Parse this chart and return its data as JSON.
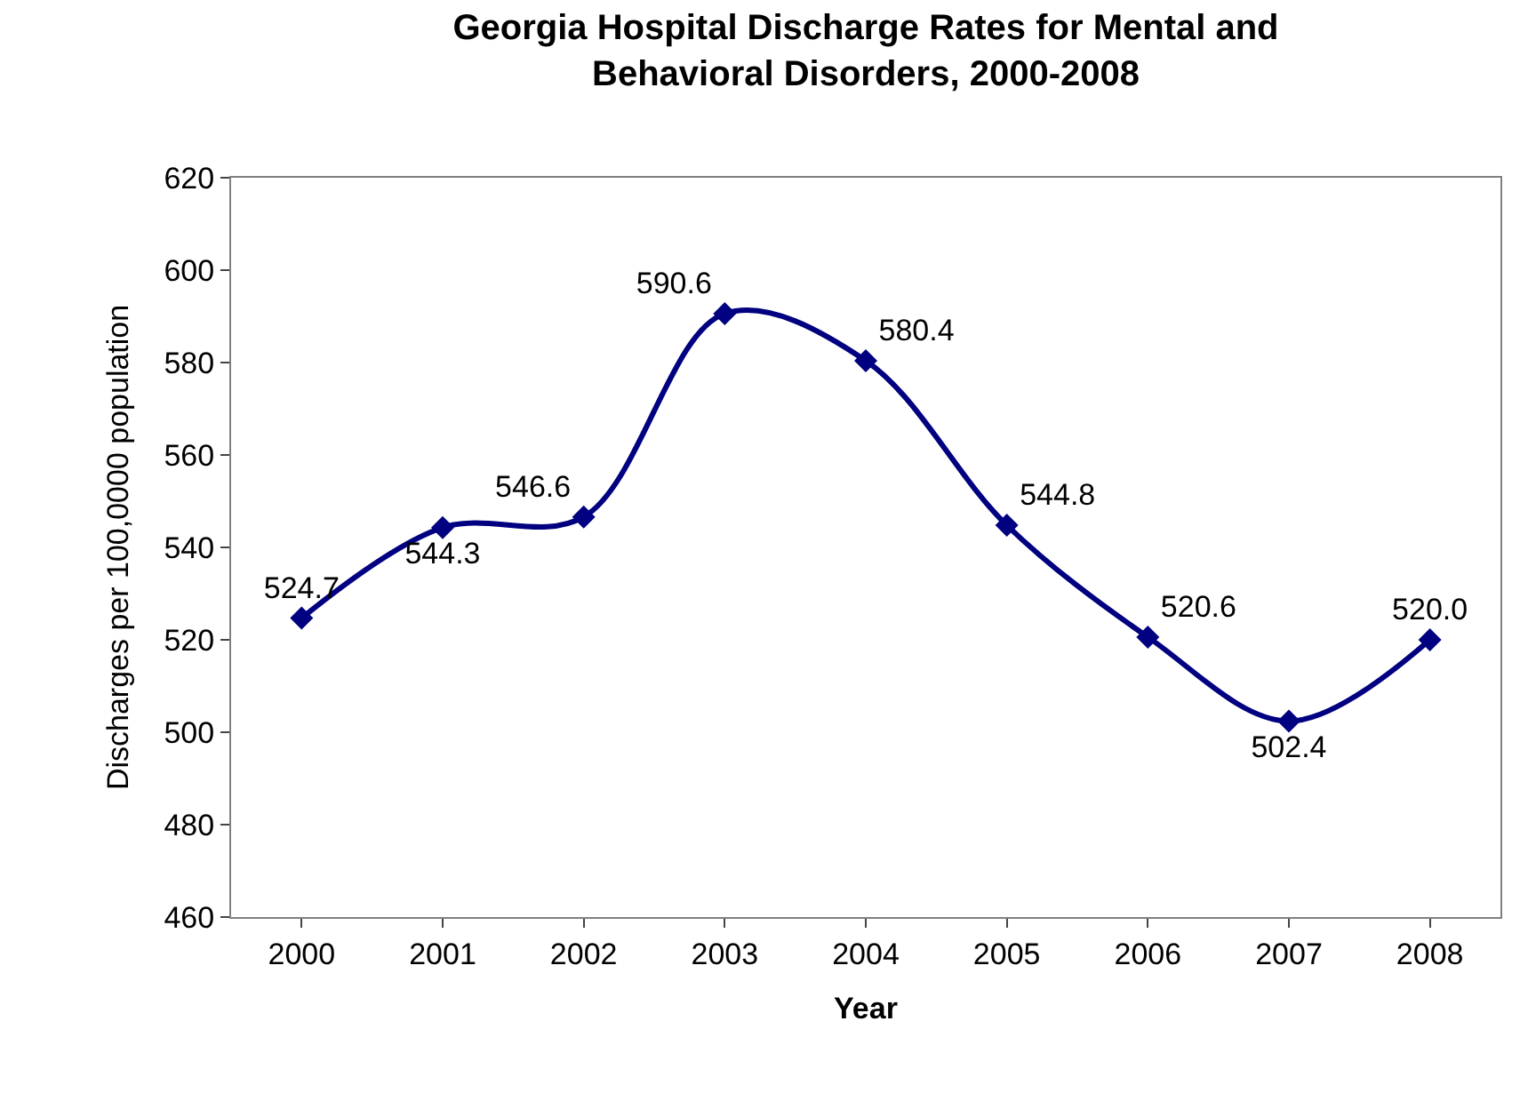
{
  "chart_data": {
    "type": "line",
    "title": "Georgia Hospital Discharge Rates for Mental and\nBehavioral Disorders, 2000-2008",
    "xlabel": "Year",
    "ylabel": "Discharges per 100,0000 population",
    "categories": [
      "2000",
      "2001",
      "2002",
      "2003",
      "2004",
      "2005",
      "2006",
      "2007",
      "2008"
    ],
    "series": [
      {
        "color": "#000080",
        "values": [
          524.7,
          544.3,
          546.6,
          590.6,
          580.4,
          544.8,
          520.6,
          502.4,
          520.0
        ],
        "value_labels": [
          "524.7",
          "544.3",
          "546.6",
          "590.6",
          "580.4",
          "544.8",
          "520.6",
          "502.4",
          "520.0"
        ]
      }
    ],
    "ylim": [
      460,
      620
    ],
    "yticks": [
      460,
      480,
      500,
      520,
      540,
      560,
      580,
      600,
      620
    ],
    "legend": false,
    "marker": "diamond",
    "line_style": "solid"
  }
}
